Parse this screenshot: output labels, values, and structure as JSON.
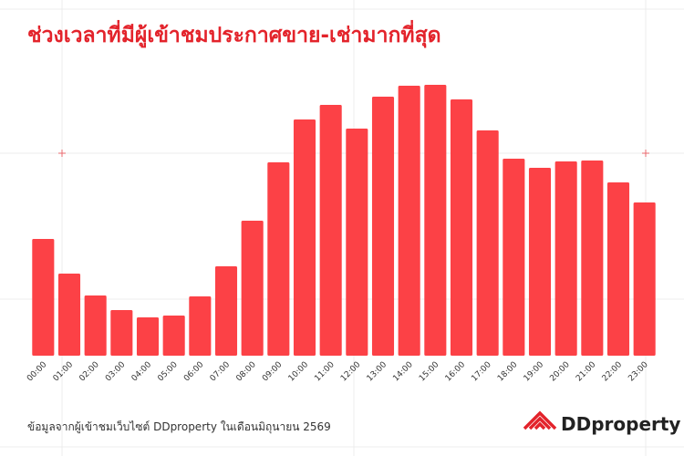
{
  "chart_data": {
    "type": "bar",
    "title": "ช่วงเวลาที่มีผู้เข้าชมประกาศขาย-เช่ามากที่สุด",
    "categories": [
      "00:00",
      "01:00",
      "02:00",
      "03:00",
      "04:00",
      "05:00",
      "06:00",
      "07:00",
      "08:00",
      "09:00",
      "10:00",
      "11:00",
      "12:00",
      "13:00",
      "14:00",
      "15:00",
      "16:00",
      "17:00",
      "18:00",
      "19:00",
      "20:00",
      "21:00",
      "22:00",
      "23:00"
    ],
    "values": [
      128,
      90,
      66,
      50,
      42,
      44,
      65,
      98,
      148,
      212,
      259,
      275,
      249,
      284,
      296,
      297,
      281,
      247,
      216,
      206,
      213,
      214,
      190,
      168
    ],
    "color": "#fc4146",
    "ylim": [
      0,
      300
    ]
  },
  "source": "ข้อมูลจากผู้เข้าชมเว็บไซต์ DDproperty ในเดือนมิถุนายน 2569",
  "logo": "DDproperty"
}
